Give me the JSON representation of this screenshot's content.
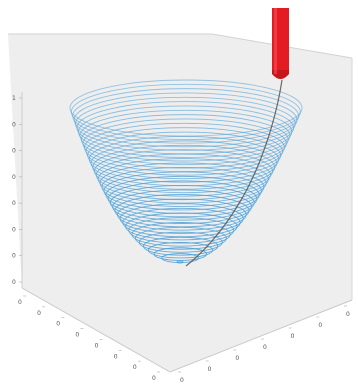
{
  "figure": {
    "z_ticks": [
      "1",
      "0",
      "0",
      "0",
      "0",
      "0",
      "0",
      "0"
    ],
    "x_ticks": [
      "0",
      "0",
      "0",
      "0",
      "0",
      "0",
      "0",
      "0"
    ],
    "y_ticks": [
      "0",
      "0",
      "0",
      "0",
      "0",
      "0",
      "0"
    ],
    "colors": {
      "background": "#ffffff",
      "box_panel": "#ededed",
      "box_edges": "#c9c9c9",
      "contour_lines": "#4a9ed6",
      "tool_path": "#555555",
      "tool": "#e31b23"
    },
    "contour_count": 40,
    "shape": "paraboloid-bowl",
    "tool_icon": "cylindrical-tool-icon"
  }
}
